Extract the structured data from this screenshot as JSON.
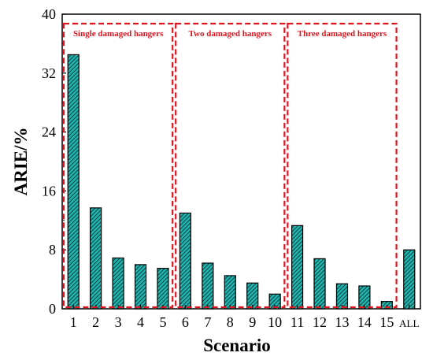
{
  "chart_data": {
    "type": "bar",
    "categories": [
      "1",
      "2",
      "3",
      "4",
      "5",
      "6",
      "7",
      "8",
      "9",
      "10",
      "11",
      "12",
      "13",
      "14",
      "15",
      "ALL"
    ],
    "values": [
      34.5,
      13.7,
      6.9,
      6.0,
      5.5,
      13.0,
      6.2,
      4.5,
      3.5,
      2.0,
      11.3,
      6.8,
      3.4,
      3.1,
      1.0,
      8.0
    ],
    "xlabel": "Scenario",
    "ylabel": "ARIE/%",
    "ylim": [
      0,
      40
    ],
    "yticks": [
      0,
      8,
      16,
      24,
      32,
      40
    ],
    "grid": false,
    "bar_color": "#1fb7b1",
    "bar_pattern": "diagonal-hatch",
    "groups": [
      {
        "label": "Single damaged hangers",
        "first": 0,
        "last": 4
      },
      {
        "label": "Two damaged hangers",
        "first": 5,
        "last": 9
      },
      {
        "label": "Three damaged hangers",
        "first": 10,
        "last": 14
      }
    ],
    "group_box_color": "#e0141e"
  }
}
